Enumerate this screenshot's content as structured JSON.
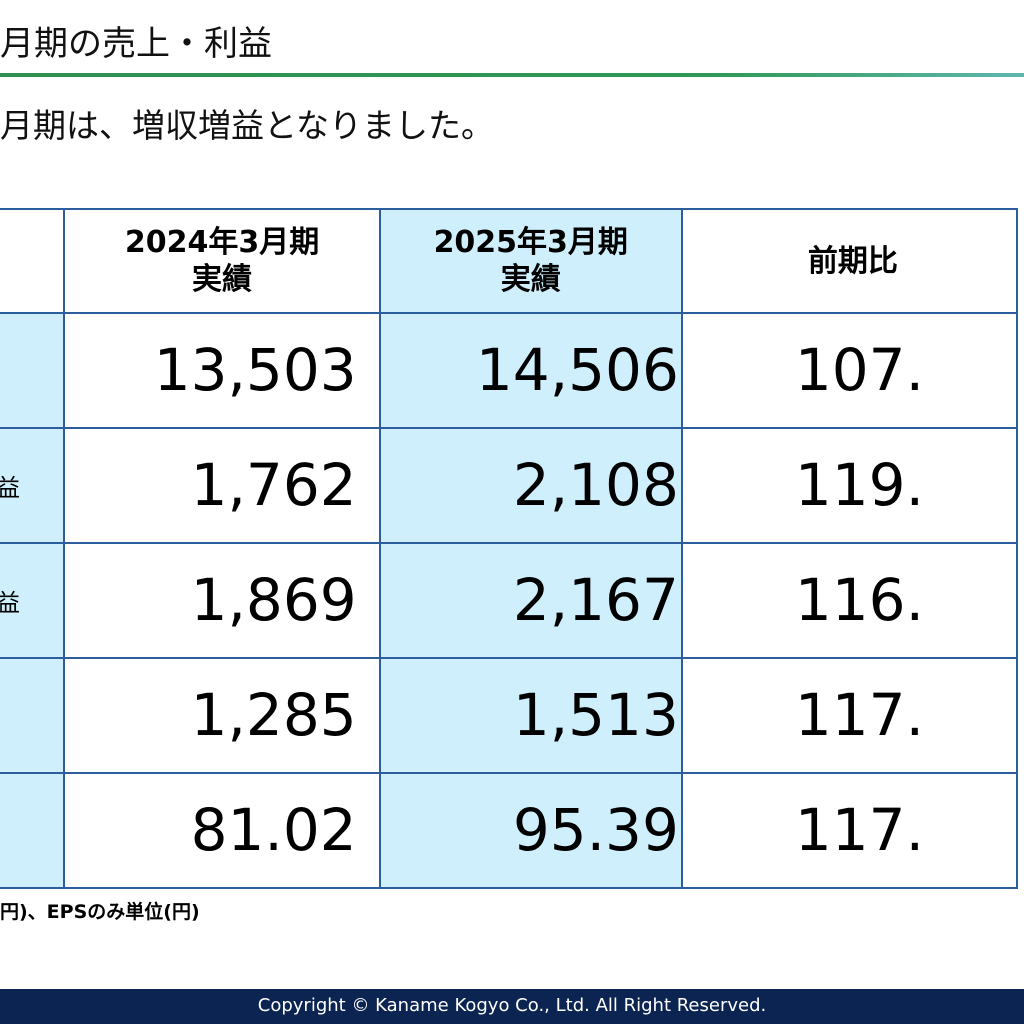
{
  "header": {
    "title": "月期の売上・利益",
    "subtitle": "月期は、増収増益となりました。"
  },
  "table": {
    "columns": [
      "",
      "2024年3月期\n実績",
      "2025年3月期\n実績",
      "前期比"
    ],
    "col_prev_line1": "2024年3月期",
    "col_prev_line2": "実績",
    "col_curr_line1": "2025年3月期",
    "col_curr_line2": "実績",
    "col_ratio": "前期比",
    "rows": [
      {
        "label": "",
        "prev": "13,503",
        "curr": "14,506",
        "ratio": "107."
      },
      {
        "label": "益",
        "prev": "1,762",
        "curr": "2,108",
        "ratio": "119."
      },
      {
        "label": "益",
        "prev": "1,869",
        "curr": "2,167",
        "ratio": "116."
      },
      {
        "label": "",
        "prev": "1,285",
        "curr": "1,513",
        "ratio": "117."
      },
      {
        "label": "",
        "prev": "81.02",
        "curr": "95.39",
        "ratio": "117."
      }
    ]
  },
  "note": "円)、EPSのみ単位(円)",
  "footer": "Copyright © Kaname Kogyo Co., Ltd. All Right Reserved.",
  "colors": {
    "accent_rule": "#2f8f4e",
    "table_border": "#2c5d9e",
    "highlight_fill": "#cfeffc",
    "footer_bg": "#0c2451"
  }
}
